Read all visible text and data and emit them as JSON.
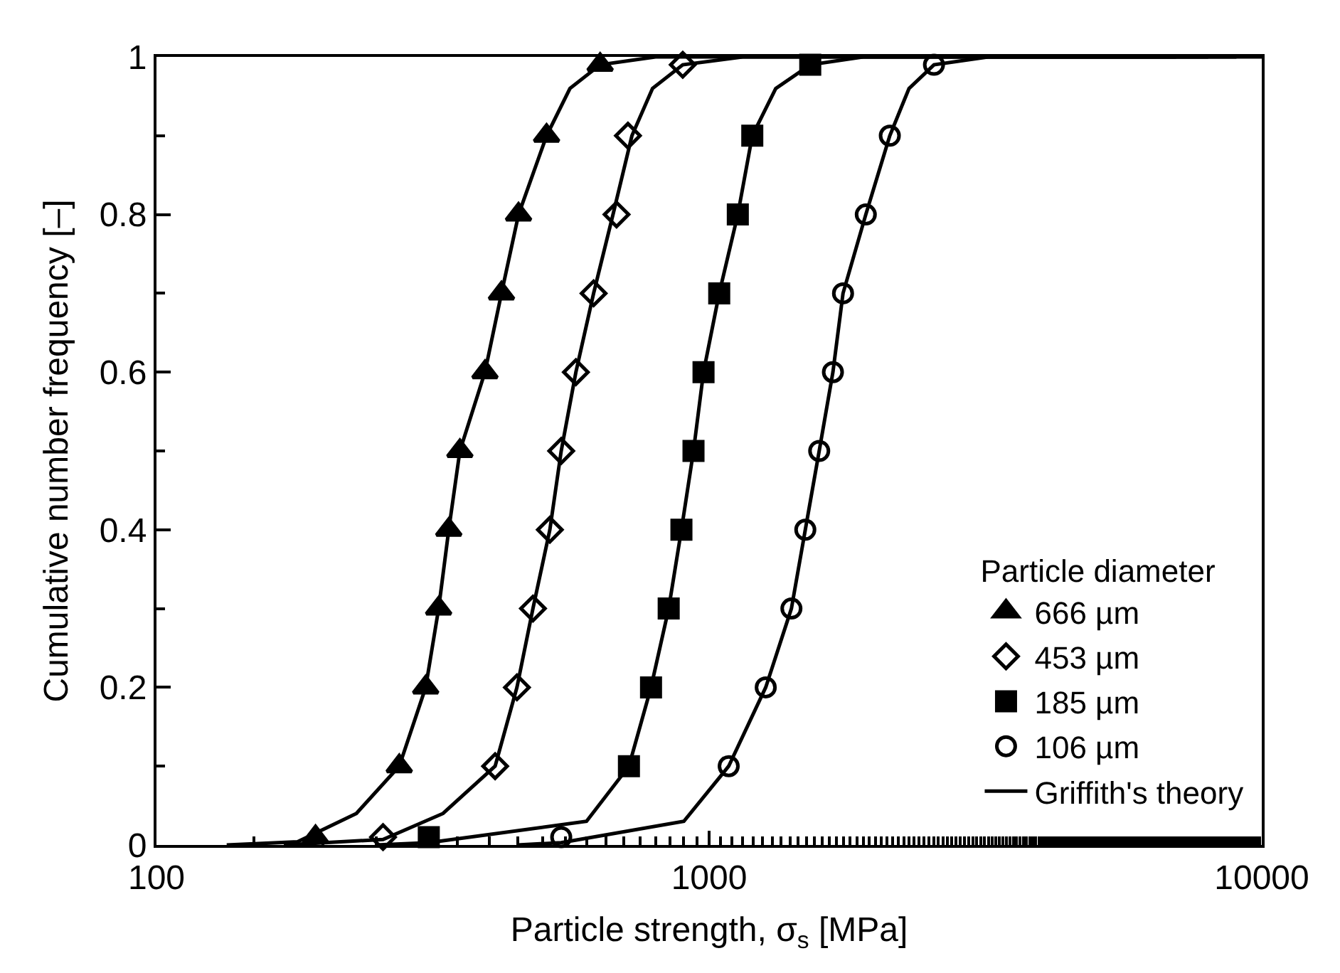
{
  "chart_data": {
    "type": "scatter",
    "xlabel": "Particle strength, σ$_{s}$ [MPa]",
    "ylabel": "Cumulative number frequency [–]",
    "legend_title": "Particle diameter",
    "legend": "bottom right",
    "grid": false,
    "log": "x",
    "xlim": [
      100,
      10000
    ],
    "xticks": [
      100,
      1000,
      10000
    ],
    "ylim": [
      0,
      1
    ],
    "yticks": [
      0,
      {
        "value": 0.2,
        "label": "0.2"
      },
      {
        "value": 0.4,
        "label": "0.4"
      },
      {
        "value": 0.6,
        "label": "0.6"
      },
      {
        "value": 0.8,
        "label": "0.8"
      },
      1
    ],
    "series": [
      {
        "name": "666 µm",
        "marker": "triangle",
        "color": "#000000",
        "x": [
          194,
          275,
          307,
          324,
          338,
          354,
          393,
          421,
          452,
          508,
          635
        ],
        "values": [
          0.01,
          0.1,
          0.2,
          0.3,
          0.4,
          0.5,
          0.6,
          0.7,
          0.8,
          0.9,
          0.99
        ]
      },
      {
        "name": "453 µm",
        "marker": "diamond",
        "color": "#ffffff",
        "x": [
          257,
          410,
          449,
          480,
          515,
          540,
          574,
          618,
          680,
          713,
          896
        ],
        "values": [
          0.01,
          0.1,
          0.2,
          0.3,
          0.4,
          0.5,
          0.6,
          0.7,
          0.8,
          0.9,
          0.99
        ]
      },
      {
        "name": "185 µm",
        "marker": "square",
        "color": "#000000",
        "x": [
          311,
          716,
          785,
          845,
          891,
          937,
          977,
          1043,
          1127,
          1197,
          1524
        ],
        "values": [
          0.01,
          0.1,
          0.2,
          0.3,
          0.4,
          0.5,
          0.6,
          0.7,
          0.8,
          0.9,
          0.99
        ]
      },
      {
        "name": "106 µm",
        "marker": "circle",
        "color": "#ffffff",
        "x": [
          540,
          1085,
          1266,
          1409,
          1493,
          1582,
          1675,
          1747,
          1921,
          2123,
          2552
        ],
        "values": [
          0.01,
          0.1,
          0.2,
          0.3,
          0.4,
          0.5,
          0.6,
          0.7,
          0.8,
          0.9,
          0.99
        ]
      },
      {
        "name": "Griffith's theory",
        "type": "line",
        "color": "#000000",
        "x": [
          134,
          180,
          230,
          275,
          307,
          324,
          338,
          354,
          393,
          421,
          452,
          508,
          560,
          635,
          800,
          10000
        ],
        "values": [
          0,
          0.004,
          0.04,
          0.1,
          0.2,
          0.3,
          0.4,
          0.5,
          0.6,
          0.7,
          0.8,
          0.9,
          0.96,
          0.99,
          1,
          1
        ]
      },
      {
        "type": "line",
        "color": "#000000",
        "x": [
          170,
          257,
          330,
          410,
          449,
          480,
          515,
          540,
          574,
          618,
          670,
          725,
          790,
          896,
          1150,
          9000
        ],
        "values": [
          0,
          0.007,
          0.04,
          0.1,
          0.2,
          0.3,
          0.4,
          0.5,
          0.6,
          0.7,
          0.8,
          0.9,
          0.96,
          0.99,
          1,
          1
        ]
      },
      {
        "type": "line",
        "color": "#000000",
        "x": [
          250,
          311,
          600,
          716,
          785,
          845,
          891,
          937,
          977,
          1043,
          1127,
          1197,
          1320,
          1524,
          1900,
          8000
        ],
        "values": [
          0,
          0.003,
          0.03,
          0.1,
          0.2,
          0.3,
          0.4,
          0.5,
          0.6,
          0.7,
          0.8,
          0.9,
          0.96,
          0.99,
          1,
          1
        ]
      },
      {
        "type": "line",
        "color": "#000000",
        "x": [
          450,
          540,
          900,
          1085,
          1266,
          1409,
          1493,
          1582,
          1675,
          1747,
          1921,
          2123,
          2300,
          2552,
          3200,
          7000
        ],
        "values": [
          0,
          0.003,
          0.03,
          0.1,
          0.2,
          0.3,
          0.4,
          0.5,
          0.6,
          0.7,
          0.8,
          0.9,
          0.96,
          0.99,
          1,
          1
        ]
      }
    ]
  }
}
